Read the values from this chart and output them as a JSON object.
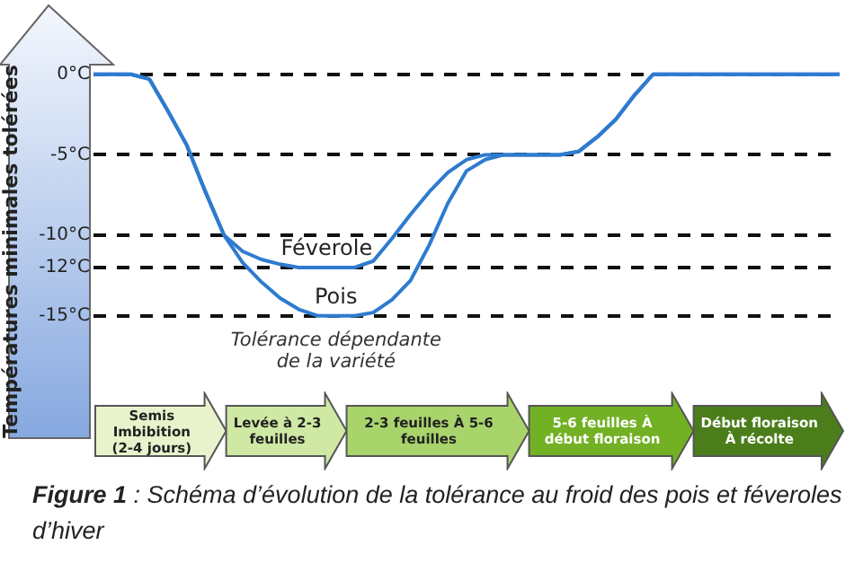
{
  "chart_data": {
    "type": "line",
    "title": "Figure 1 : Schéma d’évolution de la tolérance au froid des pois et féveroles d’hiver",
    "ylabel": "Températures minimales tolérées",
    "categories": [
      null,
      null,
      null,
      null,
      null,
      null,
      null,
      null,
      null,
      null,
      null,
      null,
      null,
      null,
      null,
      null,
      null,
      null,
      null,
      null,
      null,
      null,
      null,
      null,
      null,
      null,
      null,
      null,
      null,
      null,
      null,
      null,
      null,
      null,
      null,
      null,
      null,
      null,
      null,
      null,
      null
    ],
    "ylim": [
      -22.6,
      0.6
    ],
    "yticks": [
      {
        "value": 0,
        "label": "0°C"
      },
      {
        "value": -5,
        "label": "-5°C"
      },
      {
        "value": -10,
        "label": "-10°C"
      },
      {
        "value": -12,
        "label": "-12°C"
      },
      {
        "value": -15,
        "label": "-15°C"
      }
    ],
    "grid": "y",
    "tick_labels": "y",
    "legend": false,
    "marker": "none",
    "line_style": "solid",
    "series": [
      {
        "name": "Féverole",
        "color": "#2e7bcf",
        "values": [
          0,
          0,
          0,
          -0.3,
          -2.3,
          -4.4,
          -7.3,
          -10,
          -11,
          -11.5,
          -11.8,
          -12,
          -12,
          -12,
          -12,
          -11.6,
          -10.2,
          -8.7,
          -7.3,
          -6.1,
          -5.3,
          -5,
          -5,
          -5,
          -5,
          -5,
          -4.8,
          -3.9,
          -2.8,
          -1.3,
          0,
          0,
          0,
          0,
          0,
          0,
          0,
          0,
          0,
          0,
          0
        ]
      },
      {
        "name": "Pois",
        "color": "#2e7bcf",
        "values": [
          0,
          0,
          0,
          -0.3,
          -2.3,
          -4.4,
          -7.3,
          -10,
          -11.7,
          -12.9,
          -13.9,
          -14.6,
          -15,
          -15,
          -15,
          -14.8,
          -14,
          -12.8,
          -10.6,
          -8,
          -6,
          -5.3,
          -5,
          -5,
          -5,
          -5,
          -4.8,
          -3.9,
          -2.8,
          -1.3,
          0,
          0,
          0,
          0,
          0,
          0,
          0,
          0,
          0,
          0,
          0
        ]
      }
    ],
    "annotations": [
      "Tolérance dépendante de la variété",
      "Semis Imbibition (2-4 jours)",
      "Levée à 2-3 feuilles",
      "2-3 feuilles À 5-6 feuilles",
      "5-6 feuilles À début floraison",
      "Début floraison À récolte"
    ]
  }
}
